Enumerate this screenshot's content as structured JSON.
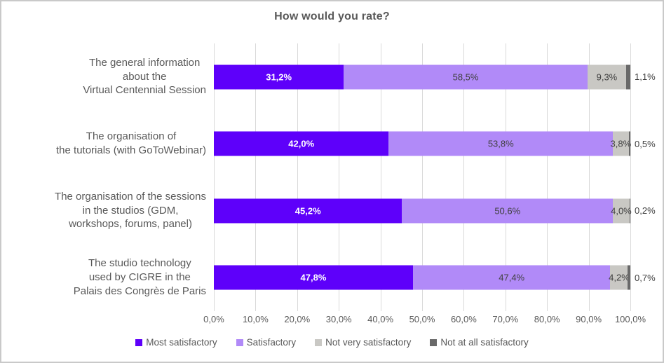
{
  "title": "How would you rate?",
  "colors": {
    "most_satisfactory": "#5E00FA",
    "satisfactory": "#B18AF8",
    "not_very_satisfactory": "#C9C8C4",
    "not_at_all_satisfactory": "#696969",
    "gridline": "#D9D9D9",
    "text": "#595959",
    "data_label": "#404040",
    "frame_border": "#C9C9C9"
  },
  "chart_data": {
    "type": "bar",
    "orientation": "horizontal",
    "stacked": true,
    "grid": "vertical",
    "legend_position": "bottom",
    "xlim": [
      0,
      100
    ],
    "title": "How would you rate?",
    "categories": [
      "The general information\nabout the\nVirtual Centennial Session",
      "The organisation of\nthe tutorials (with GoToWebinar)",
      "The organisation of the sessions\nin the studios (GDM,\nworkshops, forums, panel)",
      "The studio technology\nused by CIGRE in the\nPalais des Congrès de Paris"
    ],
    "series": [
      {
        "name": "Most satisfactory",
        "color": "#5E00FA",
        "values": [
          31.2,
          42.0,
          45.2,
          47.8
        ],
        "labels": [
          "31,2%",
          "42,0%",
          "45,2%",
          "47,8%"
        ]
      },
      {
        "name": "Satisfactory",
        "color": "#B18AF8",
        "values": [
          58.5,
          53.8,
          50.6,
          47.4
        ],
        "labels": [
          "58,5%",
          "53,8%",
          "50,6%",
          "47,4%"
        ]
      },
      {
        "name": "Not very satisfactory",
        "color": "#C9C8C4",
        "values": [
          9.3,
          3.8,
          4.0,
          4.2
        ],
        "labels": [
          "9,3%",
          "3,8%",
          "4,0%",
          "4,2%"
        ]
      },
      {
        "name": "Not at all satisfactory",
        "color": "#696969",
        "values": [
          1.1,
          0.5,
          0.2,
          0.7
        ],
        "labels": [
          "1,1%",
          "0,5%",
          "0,2%",
          "0,7%"
        ]
      }
    ],
    "x_ticks": [
      "0,0%",
      "10,0%",
      "20,0%",
      "30,0%",
      "40,0%",
      "50,0%",
      "60,0%",
      "70,0%",
      "80,0%",
      "90,0%",
      "100,0%"
    ]
  }
}
